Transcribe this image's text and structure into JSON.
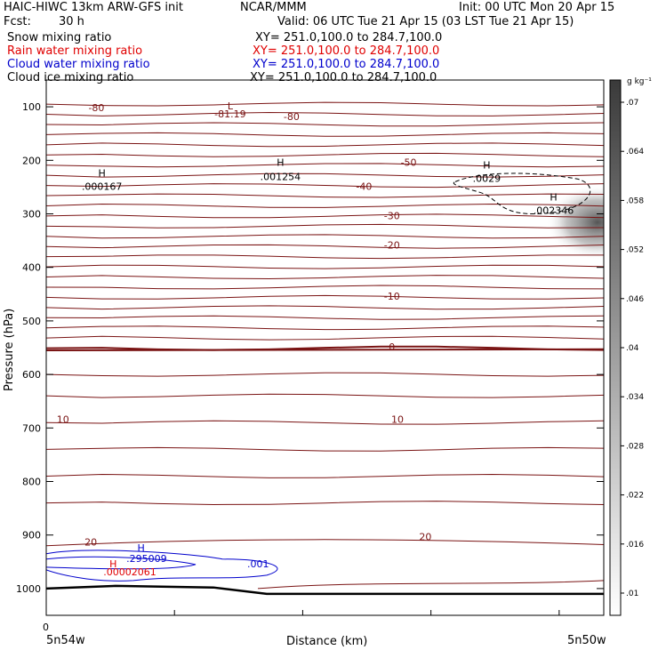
{
  "header": {
    "title": "HAIC-HIWC 13km ARW-GFS init",
    "org": "NCAR/MMM",
    "init": "Init: 00 UTC Mon 20 Apr 15",
    "fcst_label": "Fcst:",
    "fcst_value": "30 h",
    "valid": "Valid: 06 UTC Tue 21 Apr 15 (03 LST Tue 21 Apr 15)",
    "fields": [
      {
        "name": "Snow mixing ratio",
        "xy": "XY= 251.0,100.0 to 284.7,100.0",
        "color": "#000000"
      },
      {
        "name": "Rain water mixing ratio",
        "xy": "XY= 251.0,100.0 to 284.7,100.0",
        "color": "#e00000"
      },
      {
        "name": "Cloud water mixing ratio",
        "xy": "XY= 251.0,100.0 to 284.7,100.0",
        "color": "#0000cc"
      },
      {
        "name": "Cloud ice mixing ratio",
        "xy": "XY= 251.0,100.0 to 284.7,100.0",
        "color": "#000000"
      }
    ]
  },
  "chart_data": {
    "type": "contour",
    "ylabel": "Pressure (hPa)",
    "xlabel": "Distance (km)",
    "x_zero_label": "0",
    "x_left_label": "5n54w",
    "x_right_label": "5n50w",
    "yticks": [
      100,
      200,
      300,
      400,
      500,
      600,
      700,
      800,
      900,
      1000
    ],
    "ylim": [
      1050,
      50
    ],
    "colorbar": {
      "unit_label": "g kg⁻¹",
      "levels": [
        ".01",
        ".016",
        ".022",
        ".028",
        ".034",
        ".04",
        ".046",
        ".052",
        ".058",
        ".064",
        ".07"
      ]
    },
    "temperature_labels": [
      {
        "text": "-80",
        "p": 108,
        "x": 0.09
      },
      {
        "text": "-80",
        "p": 125,
        "x": 0.44
      },
      {
        "text": "-81.19",
        "p": 120,
        "x": 0.33
      },
      {
        "text": "L",
        "p": 105,
        "x": 0.33
      },
      {
        "text": "-50",
        "p": 210,
        "x": 0.65
      },
      {
        "text": "-40",
        "p": 255,
        "x": 0.57
      },
      {
        "text": "-30",
        "p": 310,
        "x": 0.62
      },
      {
        "text": "-20",
        "p": 365,
        "x": 0.62
      },
      {
        "text": "-10",
        "p": 460,
        "x": 0.62
      },
      {
        "text": "0",
        "p": 555,
        "x": 0.62
      },
      {
        "text": "10",
        "p": 690,
        "x": 0.03
      },
      {
        "text": "10",
        "p": 690,
        "x": 0.63
      },
      {
        "text": "20",
        "p": 920,
        "x": 0.08
      },
      {
        "text": "20",
        "p": 910,
        "x": 0.68
      }
    ],
    "highs": [
      {
        "text": "H",
        "p": 230,
        "x": 0.1
      },
      {
        "text": ".000167",
        "p": 255,
        "x": 0.1
      },
      {
        "text": "H",
        "p": 210,
        "x": 0.42
      },
      {
        "text": ".001254",
        "p": 237,
        "x": 0.42
      },
      {
        "text": "H",
        "p": 215,
        "x": 0.79
      },
      {
        "text": ".0029",
        "p": 240,
        "x": 0.79
      },
      {
        "text": "H",
        "p": 275,
        "x": 0.91
      },
      {
        "text": ".002346",
        "p": 300,
        "x": 0.91
      }
    ],
    "low_level_labels": [
      {
        "text": "H",
        "p": 930,
        "x": 0.17,
        "color": "#0000cc"
      },
      {
        "text": ".295009",
        "p": 950,
        "x": 0.18,
        "color": "#0000cc"
      },
      {
        "text": "H",
        "p": 960,
        "x": 0.12,
        "color": "#e00000"
      },
      {
        "text": ".00002061",
        "p": 975,
        "x": 0.15,
        "color": "#e00000"
      },
      {
        "text": ".001",
        "p": 960,
        "x": 0.38,
        "color": "#0000cc"
      }
    ]
  }
}
